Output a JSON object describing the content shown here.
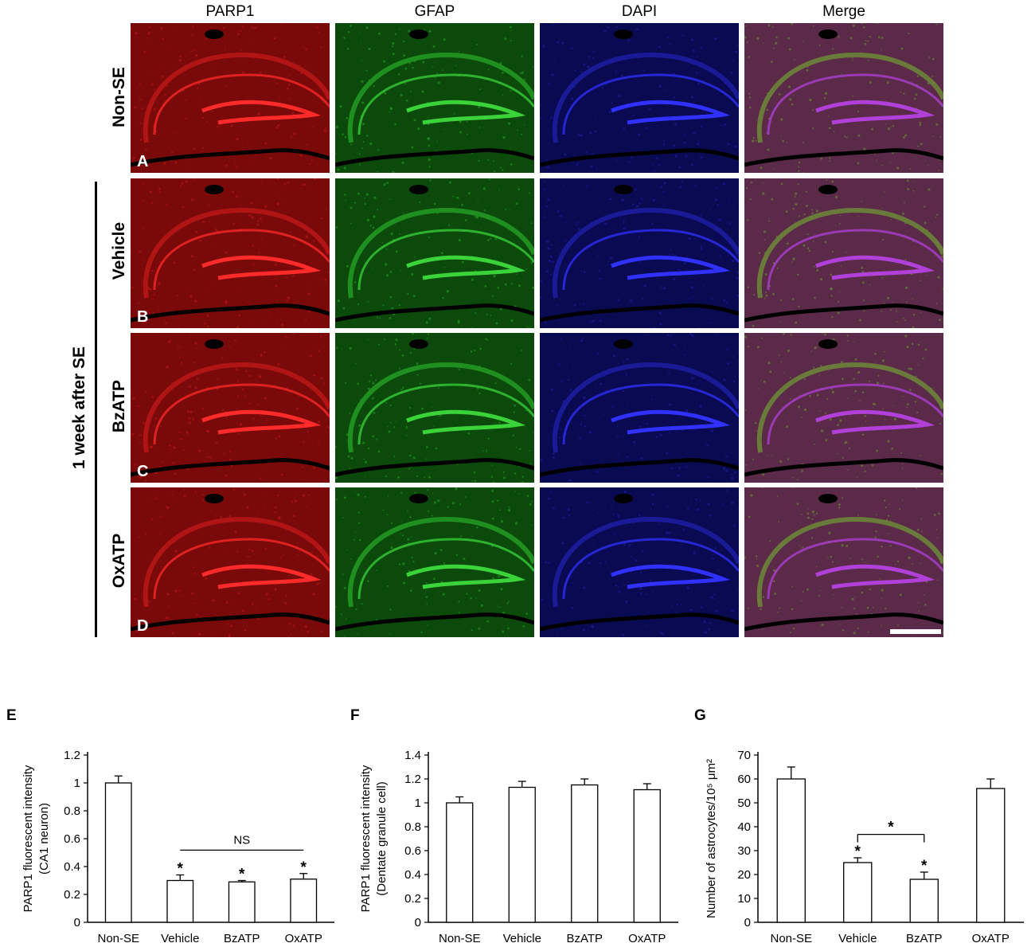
{
  "columns": [
    "PARP1",
    "GFAP",
    "DAPI",
    "Merge"
  ],
  "rows": [
    {
      "label": "Non-SE",
      "letter": "A"
    },
    {
      "label": "Vehicle",
      "letter": "B"
    },
    {
      "label": "BzATP",
      "letter": "C"
    },
    {
      "label": "OxATP",
      "letter": "D"
    }
  ],
  "group_label": "1 week after SE",
  "colors": {
    "PARP1": "#c81414",
    "GFAP": "#22b022",
    "DAPI": "#2222c8",
    "Merge": "#8a3a5a"
  },
  "chart_letters": [
    "E",
    "F",
    "G"
  ],
  "chart_data": [
    {
      "type": "bar",
      "categories": [
        "Non-SE",
        "Vehicle",
        "BzATP",
        "OxATP"
      ],
      "values": [
        1.0,
        0.3,
        0.29,
        0.31
      ],
      "errors": [
        0.05,
        0.04,
        0.01,
        0.04
      ],
      "ylabel": "PARP1 fluorescent intensity",
      "ylabel2": "(CA1 neuron)",
      "ylim": [
        0,
        1.2
      ],
      "yticks": [
        0,
        0.2,
        0.4,
        0.6,
        0.8,
        1,
        1.2
      ],
      "stars": [
        false,
        true,
        true,
        true
      ],
      "bracket": {
        "from": 1,
        "to": 3,
        "label": "NS"
      }
    },
    {
      "type": "bar",
      "categories": [
        "Non-SE",
        "Vehicle",
        "BzATP",
        "OxATP"
      ],
      "values": [
        1.0,
        1.13,
        1.15,
        1.11
      ],
      "errors": [
        0.05,
        0.05,
        0.05,
        0.05
      ],
      "ylabel": "PARP1 fluorescent intensity",
      "ylabel2": "(Dentate granule cell)",
      "ylim": [
        0,
        1.4
      ],
      "yticks": [
        0,
        0.2,
        0.4,
        0.6,
        0.8,
        1,
        1.2,
        1.4
      ],
      "stars": [
        false,
        false,
        false,
        false
      ],
      "bracket": null
    },
    {
      "type": "bar",
      "categories": [
        "Non-SE",
        "Vehicle",
        "BzATP",
        "OxATP"
      ],
      "values": [
        60,
        25,
        18,
        56
      ],
      "errors": [
        5,
        2,
        3,
        4
      ],
      "ylabel": "Number of astrocytes/10⁵ μm²",
      "ylabel2": "",
      "ylim": [
        0,
        70
      ],
      "yticks": [
        0,
        10,
        20,
        30,
        40,
        50,
        60,
        70
      ],
      "stars": [
        false,
        true,
        true,
        false
      ],
      "bracket": {
        "from": 1,
        "to": 2,
        "label": "*"
      }
    }
  ]
}
